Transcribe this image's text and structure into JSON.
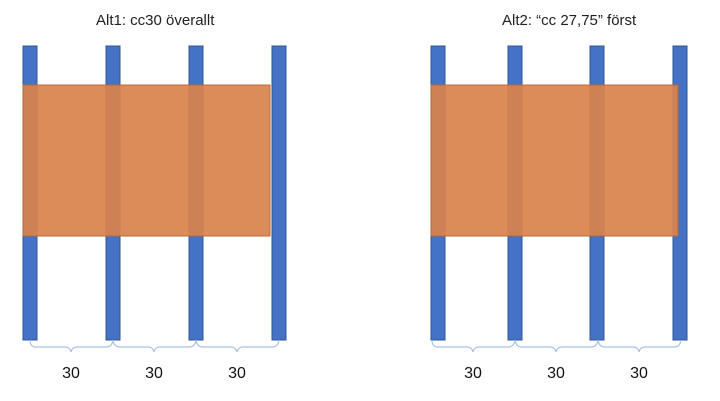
{
  "diagrams": [
    {
      "title": "Alt1: cc30 överallt",
      "spacing_labels": [
        "30",
        "30",
        "30"
      ]
    },
    {
      "title": "Alt2: “cc 27,75” först",
      "spacing_labels": [
        "30",
        "30",
        "30"
      ]
    }
  ],
  "colors": {
    "stud": "#4472c4",
    "stud_border": "#2f5597",
    "panel": "#d9824b",
    "panel_border": "#b86a37",
    "bracket": "#a9c4e6"
  }
}
